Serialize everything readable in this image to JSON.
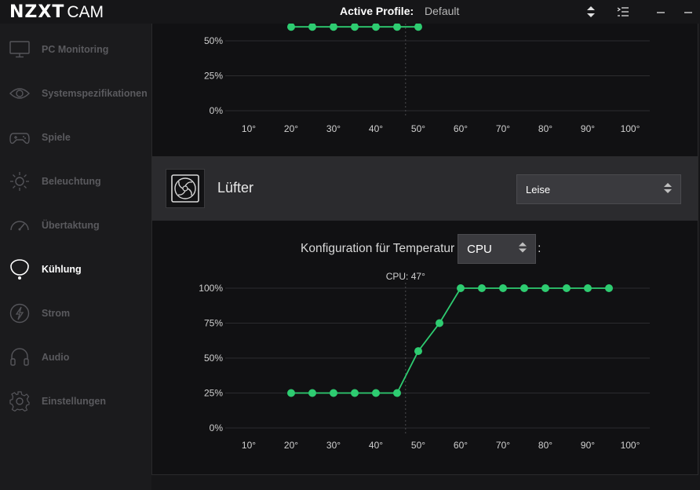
{
  "titlebar": {
    "brand": "NZXT",
    "product": "CAM",
    "active_profile_label": "Active Profile:",
    "active_profile_value": "Default",
    "icons": [
      "sort-arrows-icon",
      "menu-list-icon",
      "minimize-icon",
      "close-icon"
    ]
  },
  "sidebar": {
    "items": [
      {
        "label": "PC Monitoring",
        "icon": "monitor-icon",
        "active": false
      },
      {
        "label": "Systemspezifikationen",
        "icon": "eye-icon",
        "active": false
      },
      {
        "label": "Spiele",
        "icon": "gamepad-icon",
        "active": false
      },
      {
        "label": "Beleuchtung",
        "icon": "sun-icon",
        "active": false
      },
      {
        "label": "Übertaktung",
        "icon": "gauge-icon",
        "active": false
      },
      {
        "label": "Kühlung",
        "icon": "cooling-icon",
        "active": true
      },
      {
        "label": "Strom",
        "icon": "lightning-icon",
        "active": false
      },
      {
        "label": "Audio",
        "icon": "headphones-icon",
        "active": false
      },
      {
        "label": "Einstellungen",
        "icon": "gear-icon",
        "active": false
      }
    ]
  },
  "fan_section": {
    "title": "Lüfter",
    "icon": "fan-icon",
    "preset": "Leise",
    "config_label": "Konfiguration für Temperatur",
    "config_source": "CPU",
    "config_suffix": ":"
  },
  "colors": {
    "accent": "#2ecc71",
    "background": "#111113",
    "sidebar": "#1b1b1d",
    "header": "#2b2b2e"
  },
  "chart_data": [
    {
      "type": "line",
      "title": "",
      "x_tick_labels": [
        "10°",
        "20°",
        "30°",
        "40°",
        "50°",
        "60°",
        "70°",
        "80°",
        "90°",
        "100°"
      ],
      "y_tick_labels": [
        "0%",
        "25%",
        "50%"
      ],
      "xlim": [
        10,
        100
      ],
      "ylim": [
        0,
        60
      ],
      "current_marker_x": 47,
      "series": [
        {
          "x": [
            20,
            25,
            30,
            35,
            40,
            45,
            50
          ],
          "y": [
            60,
            60,
            60,
            60,
            60,
            60,
            60
          ]
        }
      ]
    },
    {
      "type": "line",
      "title": "",
      "marker_label": "CPU: 47°",
      "x_tick_labels": [
        "10°",
        "20°",
        "30°",
        "40°",
        "50°",
        "60°",
        "70°",
        "80°",
        "90°",
        "100°"
      ],
      "y_tick_labels": [
        "0%",
        "25%",
        "50%",
        "75%",
        "100%"
      ],
      "xlim": [
        10,
        100
      ],
      "ylim": [
        0,
        100
      ],
      "current_marker_x": 47,
      "series": [
        {
          "x": [
            20,
            25,
            30,
            35,
            40,
            45,
            50,
            55,
            60,
            65,
            70,
            75,
            80,
            85,
            90,
            95
          ],
          "y": [
            25,
            25,
            25,
            25,
            25,
            25,
            55,
            75,
            100,
            100,
            100,
            100,
            100,
            100,
            100,
            100
          ]
        }
      ]
    }
  ]
}
